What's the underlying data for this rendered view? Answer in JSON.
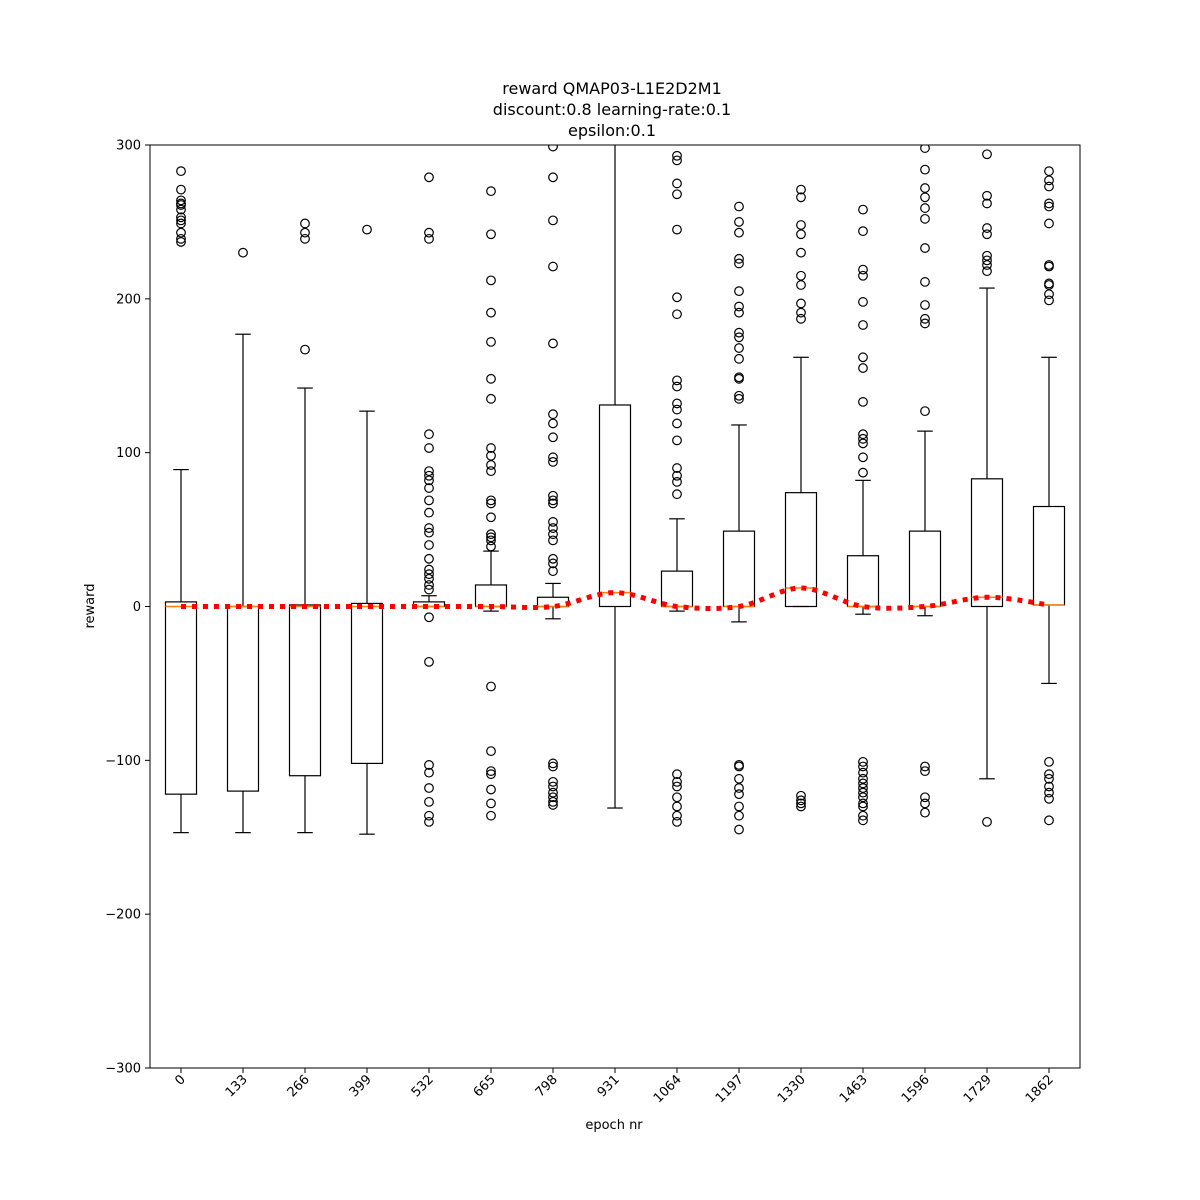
{
  "chart_data": {
    "type": "boxplot",
    "title_lines": [
      "reward QMAP03-L1E2D2M1",
      "discount:0.8 learning-rate:0.1",
      "epsilon:0.1"
    ],
    "xlabel": "epoch nr",
    "ylabel": "reward",
    "ylim": [
      -300,
      300
    ],
    "yticks": [
      -300,
      -200,
      -100,
      0,
      100,
      200,
      300
    ],
    "ytick_labels": [
      "−300",
      "−200",
      "−100",
      "0",
      "100",
      "200",
      "300"
    ],
    "categories": [
      "0",
      "133",
      "266",
      "399",
      "532",
      "665",
      "798",
      "931",
      "1064",
      "1197",
      "1330",
      "1463",
      "1596",
      "1729",
      "1862"
    ],
    "grid": false,
    "colors": {
      "box": "#000000",
      "median": "#ff7f0e",
      "mean_line": "#ff0000"
    },
    "boxes": [
      {
        "q1": -122,
        "median": 0,
        "q3": 3,
        "whislo": -147,
        "whishi": 89,
        "fliers": [
          283,
          271,
          264,
          262,
          261,
          258,
          253,
          251,
          249,
          243,
          239,
          237
        ]
      },
      {
        "q1": -120,
        "median": 0,
        "q3": 0,
        "whislo": -147,
        "whishi": 177,
        "fliers": [
          230
        ]
      },
      {
        "q1": -110,
        "median": 0,
        "q3": 1,
        "whislo": -147,
        "whishi": 142,
        "fliers": [
          249,
          243,
          239,
          167
        ]
      },
      {
        "q1": -102,
        "median": 0,
        "q3": 2,
        "whislo": -148,
        "whishi": 127,
        "fliers": [
          245
        ]
      },
      {
        "q1": 0,
        "median": 0,
        "q3": 3,
        "whislo": 0,
        "whishi": 7,
        "fliers": [
          279,
          243,
          239,
          112,
          103,
          88,
          85,
          82,
          77,
          69,
          61,
          51,
          48,
          40,
          31,
          24,
          21,
          18,
          14,
          11,
          -7,
          -36,
          -103,
          -108,
          -118,
          -127,
          -136,
          -140
        ]
      },
      {
        "q1": 0,
        "median": 0,
        "q3": 14,
        "whislo": -3,
        "whishi": 36,
        "fliers": [
          270,
          242,
          212,
          191,
          172,
          148,
          135,
          103,
          98,
          92,
          88,
          69,
          67,
          58,
          47,
          45,
          43,
          39,
          -52,
          -94,
          -107,
          -109,
          -119,
          -128,
          -136
        ]
      },
      {
        "q1": 0,
        "median": 0,
        "q3": 6,
        "whislo": -8,
        "whishi": 15,
        "fliers": [
          299,
          279,
          251,
          221,
          171,
          125,
          119,
          110,
          97,
          94,
          72,
          69,
          67,
          55,
          51,
          47,
          43,
          31,
          28,
          23,
          -102,
          -104,
          -114,
          -117,
          -121,
          -124,
          -127,
          -129
        ]
      },
      {
        "q1": 0,
        "median": 9,
        "q3": 131,
        "whislo": -131,
        "whishi": 300,
        "fliers": []
      },
      {
        "q1": 0,
        "median": 0,
        "q3": 23,
        "whislo": -3,
        "whishi": 57,
        "fliers": [
          293,
          290,
          275,
          268,
          245,
          201,
          190,
          147,
          143,
          132,
          128,
          119,
          108,
          90,
          85,
          81,
          73,
          -109,
          -114,
          -117,
          -124,
          -130,
          -136,
          -140
        ]
      },
      {
        "q1": 0,
        "median": 0,
        "q3": 49,
        "whislo": -10,
        "whishi": 118,
        "fliers": [
          260,
          250,
          243,
          226,
          223,
          205,
          195,
          191,
          178,
          175,
          168,
          161,
          149,
          148,
          137,
          135,
          -103,
          -104,
          -112,
          -118,
          -122,
          -130,
          -136,
          -145
        ]
      },
      {
        "q1": 0,
        "median": 12,
        "q3": 74,
        "whislo": 0,
        "whishi": 162,
        "fliers": [
          271,
          266,
          248,
          242,
          230,
          215,
          209,
          197,
          191,
          187,
          -123,
          -126,
          -128,
          -130
        ]
      },
      {
        "q1": 0,
        "median": 0,
        "q3": 33,
        "whislo": -5,
        "whishi": 82,
        "fliers": [
          258,
          244,
          219,
          215,
          198,
          183,
          162,
          155,
          133,
          112,
          109,
          106,
          97,
          87,
          -101,
          -104,
          -108,
          -112,
          -115,
          -118,
          -121,
          -124,
          -128,
          -130,
          -136,
          -139
        ]
      },
      {
        "q1": 0,
        "median": 0,
        "q3": 49,
        "whislo": -6,
        "whishi": 114,
        "fliers": [
          298,
          284,
          272,
          266,
          259,
          252,
          233,
          211,
          196,
          187,
          184,
          127,
          -104,
          -107,
          -124,
          -128,
          -134
        ]
      },
      {
        "q1": 0,
        "median": 6,
        "q3": 83,
        "whislo": -112,
        "whishi": 207,
        "fliers": [
          294,
          267,
          262,
          246,
          242,
          228,
          225,
          222,
          218,
          -140
        ]
      },
      {
        "q1": 1,
        "median": 1,
        "q3": 65,
        "whislo": -50,
        "whishi": 162,
        "fliers": [
          283,
          277,
          273,
          262,
          260,
          249,
          222,
          221,
          210,
          209,
          203,
          199,
          -101,
          -109,
          -112,
          -117,
          -121,
          -125,
          -139
        ]
      }
    ],
    "mean_line": [
      0,
      0,
      0,
      0,
      0,
      0,
      0,
      9,
      0,
      0,
      12,
      0,
      0,
      6,
      1
    ]
  }
}
